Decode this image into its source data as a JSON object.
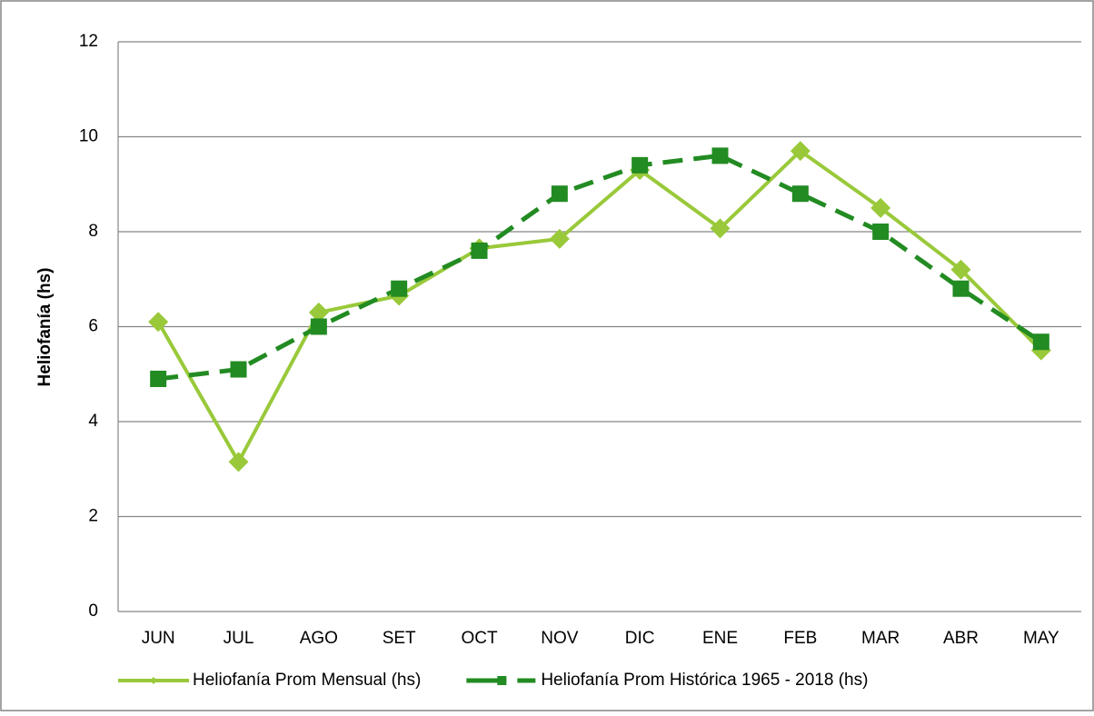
{
  "chart_data": {
    "type": "line",
    "y_label": "Heliofanía (hs)",
    "categories": [
      "JUN",
      "JUL",
      "AGO",
      "SET",
      "OCT",
      "NOV",
      "DIC",
      "ENE",
      "FEB",
      "MAR",
      "ABR",
      "MAY"
    ],
    "series": [
      {
        "name": "Heliofanía Prom Mensual (hs)",
        "color": "#99c93a",
        "line_style": "solid",
        "marker": "diamond",
        "values": [
          6.1,
          3.15,
          6.3,
          6.65,
          7.65,
          7.85,
          9.3,
          8.07,
          9.7,
          8.5,
          7.2,
          5.5
        ]
      },
      {
        "name": "Heliofanía Prom Histórica 1965 - 2018 (hs)",
        "color": "#228b22",
        "line_style": "dashed",
        "marker": "square",
        "values": [
          4.9,
          5.1,
          6.0,
          6.8,
          7.6,
          8.8,
          9.4,
          9.6,
          8.8,
          8.0,
          6.8,
          5.68
        ]
      }
    ],
    "ylim": [
      0,
      12
    ],
    "yticks": [
      0,
      2,
      4,
      6,
      8,
      10,
      12
    ],
    "grid": true,
    "legend": "bottom"
  }
}
